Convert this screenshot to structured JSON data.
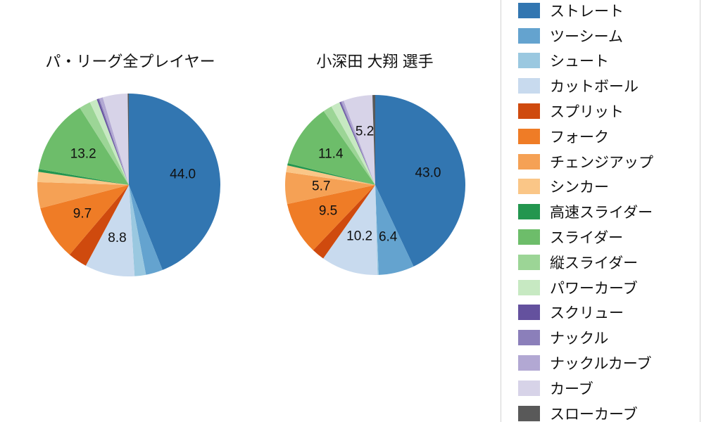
{
  "legend": {
    "items": [
      {
        "label": "ストレート",
        "color": "#3276b1"
      },
      {
        "label": "ツーシーム",
        "color": "#64a3cf"
      },
      {
        "label": "シュート",
        "color": "#9ac8e0"
      },
      {
        "label": "カットボール",
        "color": "#c8daee"
      },
      {
        "label": "スプリット",
        "color": "#cf4a0e"
      },
      {
        "label": "フォーク",
        "color": "#ef7c26"
      },
      {
        "label": "チェンジアップ",
        "color": "#f5a155"
      },
      {
        "label": "シンカー",
        "color": "#fac687"
      },
      {
        "label": "高速スライダー",
        "color": "#23964f"
      },
      {
        "label": "スライダー",
        "color": "#6dbd6a"
      },
      {
        "label": "縦スライダー",
        "color": "#9cd596"
      },
      {
        "label": "パワーカーブ",
        "color": "#c7e9c2"
      },
      {
        "label": "スクリュー",
        "color": "#64519e"
      },
      {
        "label": "ナックル",
        "color": "#8b7fba"
      },
      {
        "label": "ナックルカーブ",
        "color": "#b2a8d3"
      },
      {
        "label": "カーブ",
        "color": "#d7d3e8"
      },
      {
        "label": "スローカーブ",
        "color": "#595959"
      }
    ]
  },
  "chart_data": [
    {
      "type": "pie",
      "title": "パ・リーグ全プレイヤー",
      "unit": "percent",
      "start_angle": "top",
      "direction": "clockwise",
      "label_threshold_pct": 5,
      "categories": [
        "ストレート",
        "ツーシーム",
        "シュート",
        "カットボール",
        "スプリット",
        "フォーク",
        "チェンジアップ",
        "シンカー",
        "高速スライダー",
        "スライダー",
        "縦スライダー",
        "パワーカーブ",
        "スクリュー",
        "ナックル",
        "ナックルカーブ",
        "カーブ",
        "スローカーブ"
      ],
      "values": [
        44.0,
        3.0,
        2.0,
        8.8,
        3.4,
        9.7,
        4.6,
        1.8,
        0.5,
        13.2,
        2.0,
        1.3,
        0.3,
        0.2,
        0.6,
        4.4,
        0.2
      ],
      "visible_labels": [
        "44.0",
        "8.8",
        "9.7",
        "13.2"
      ]
    },
    {
      "type": "pie",
      "title": "小深田 大翔  選手",
      "unit": "percent",
      "start_angle": "top",
      "direction": "clockwise",
      "label_threshold_pct": 5,
      "categories": [
        "ストレート",
        "ツーシーム",
        "シュート",
        "カットボール",
        "スプリット",
        "フォーク",
        "チェンジアップ",
        "シンカー",
        "高速スライダー",
        "スライダー",
        "縦スライダー",
        "パワーカーブ",
        "スクリュー",
        "ナックル",
        "ナックルカーブ",
        "カーブ",
        "スローカーブ"
      ],
      "values": [
        43.0,
        6.4,
        0.2,
        10.2,
        2.3,
        9.5,
        5.7,
        1.2,
        0.4,
        11.4,
        1.6,
        1.6,
        0.2,
        0.2,
        0.4,
        5.2,
        0.5
      ],
      "visible_labels": [
        "43.0",
        "6.4",
        "10.2",
        "9.5",
        "5.7",
        "11.4",
        "5.2"
      ]
    }
  ]
}
